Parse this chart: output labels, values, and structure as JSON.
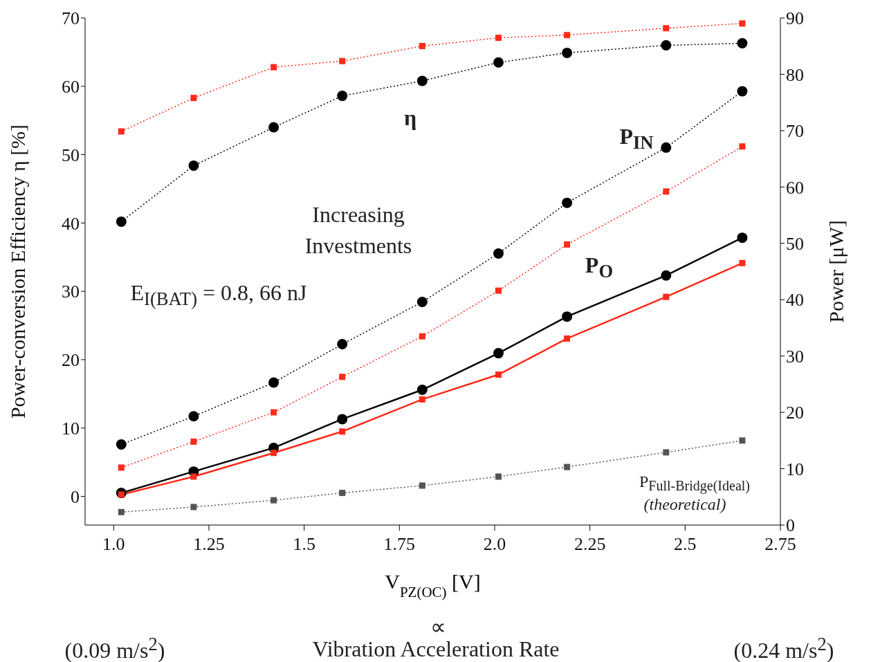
{
  "chart_data": {
    "type": "line",
    "xlabel": "V$_{PZ(OC)}$ [V]",
    "ylabel": "Power-conversion Efficiency η [%]",
    "y2label": "Power [μW]",
    "x": [
      1.02,
      1.21,
      1.42,
      1.6,
      1.81,
      2.01,
      2.19,
      2.45,
      2.65
    ],
    "series": [
      {
        "color": "#000000",
        "marker": "circle",
        "line_style": "dotted",
        "values": [
          40.2,
          48.4,
          54.0,
          58.6,
          60.8,
          63.5,
          64.9,
          66.0,
          66.3
        ]
      },
      {
        "color": "#ff2a1a",
        "marker": "square",
        "line_style": "dotted",
        "values": [
          53.4,
          58.3,
          62.8,
          63.7,
          65.9,
          67.1,
          67.5,
          68.5,
          69.2
        ]
      },
      {
        "color": "#000000",
        "marker": "circle",
        "line_style": "dotted",
        "axis": "y2",
        "values": [
          14.3,
          19.3,
          25.3,
          32.1,
          39.6,
          48.2,
          57.2,
          67.0,
          77.0
        ]
      },
      {
        "color": "#ff2a1a",
        "marker": "square",
        "line_style": "dotted",
        "axis": "y2",
        "values": [
          10.2,
          14.8,
          20.0,
          26.3,
          33.5,
          41.6,
          49.8,
          59.2,
          67.2
        ]
      },
      {
        "color": "#000000",
        "marker": "circle",
        "line_style": "solid",
        "axis": "y2",
        "values": [
          5.7,
          9.5,
          13.7,
          18.8,
          24.0,
          30.5,
          37.0,
          44.3,
          51.0
        ]
      },
      {
        "color": "#ff2a1a",
        "marker": "square",
        "line_style": "solid",
        "axis": "y2",
        "values": [
          5.4,
          8.6,
          12.8,
          16.6,
          22.3,
          26.7,
          33.1,
          40.5,
          46.5
        ]
      },
      {
        "color": "#555555",
        "marker": "square",
        "line_style": "dotted",
        "axis": "y2",
        "values": [
          2.3,
          3.2,
          4.4,
          5.7,
          7.0,
          8.6,
          10.3,
          12.9,
          15.0
        ]
      }
    ],
    "xlim": [
      0.925,
      2.75
    ],
    "xticks": [
      {
        "value": 1,
        "label": "1.0"
      },
      1.25,
      1.5,
      1.75,
      {
        "value": 2,
        "label": "2.0"
      },
      2.25,
      2.5,
      2.75
    ],
    "ylim": [
      -4.2,
      70
    ],
    "yticks": [
      0,
      10,
      20,
      30,
      40,
      50,
      60,
      70
    ],
    "y2lim": [
      0,
      90
    ],
    "y2ticks": [
      0,
      10,
      20,
      30,
      40,
      50,
      60,
      70,
      80,
      90
    ],
    "annotations": [
      "η",
      "P$_{IN}$",
      "P$_{O}$",
      "Increasing Investments",
      "E$_{I(BAT)}$ = 0.8, 66 nJ",
      "P$_{Full-Bridge(Ideal)}$",
      "(theoretical)",
      "∝",
      "Vibration Acceleration Rate",
      "(0.09 m/s$^{2}$)",
      "(0.24 m/s$^{2}$)"
    ]
  }
}
